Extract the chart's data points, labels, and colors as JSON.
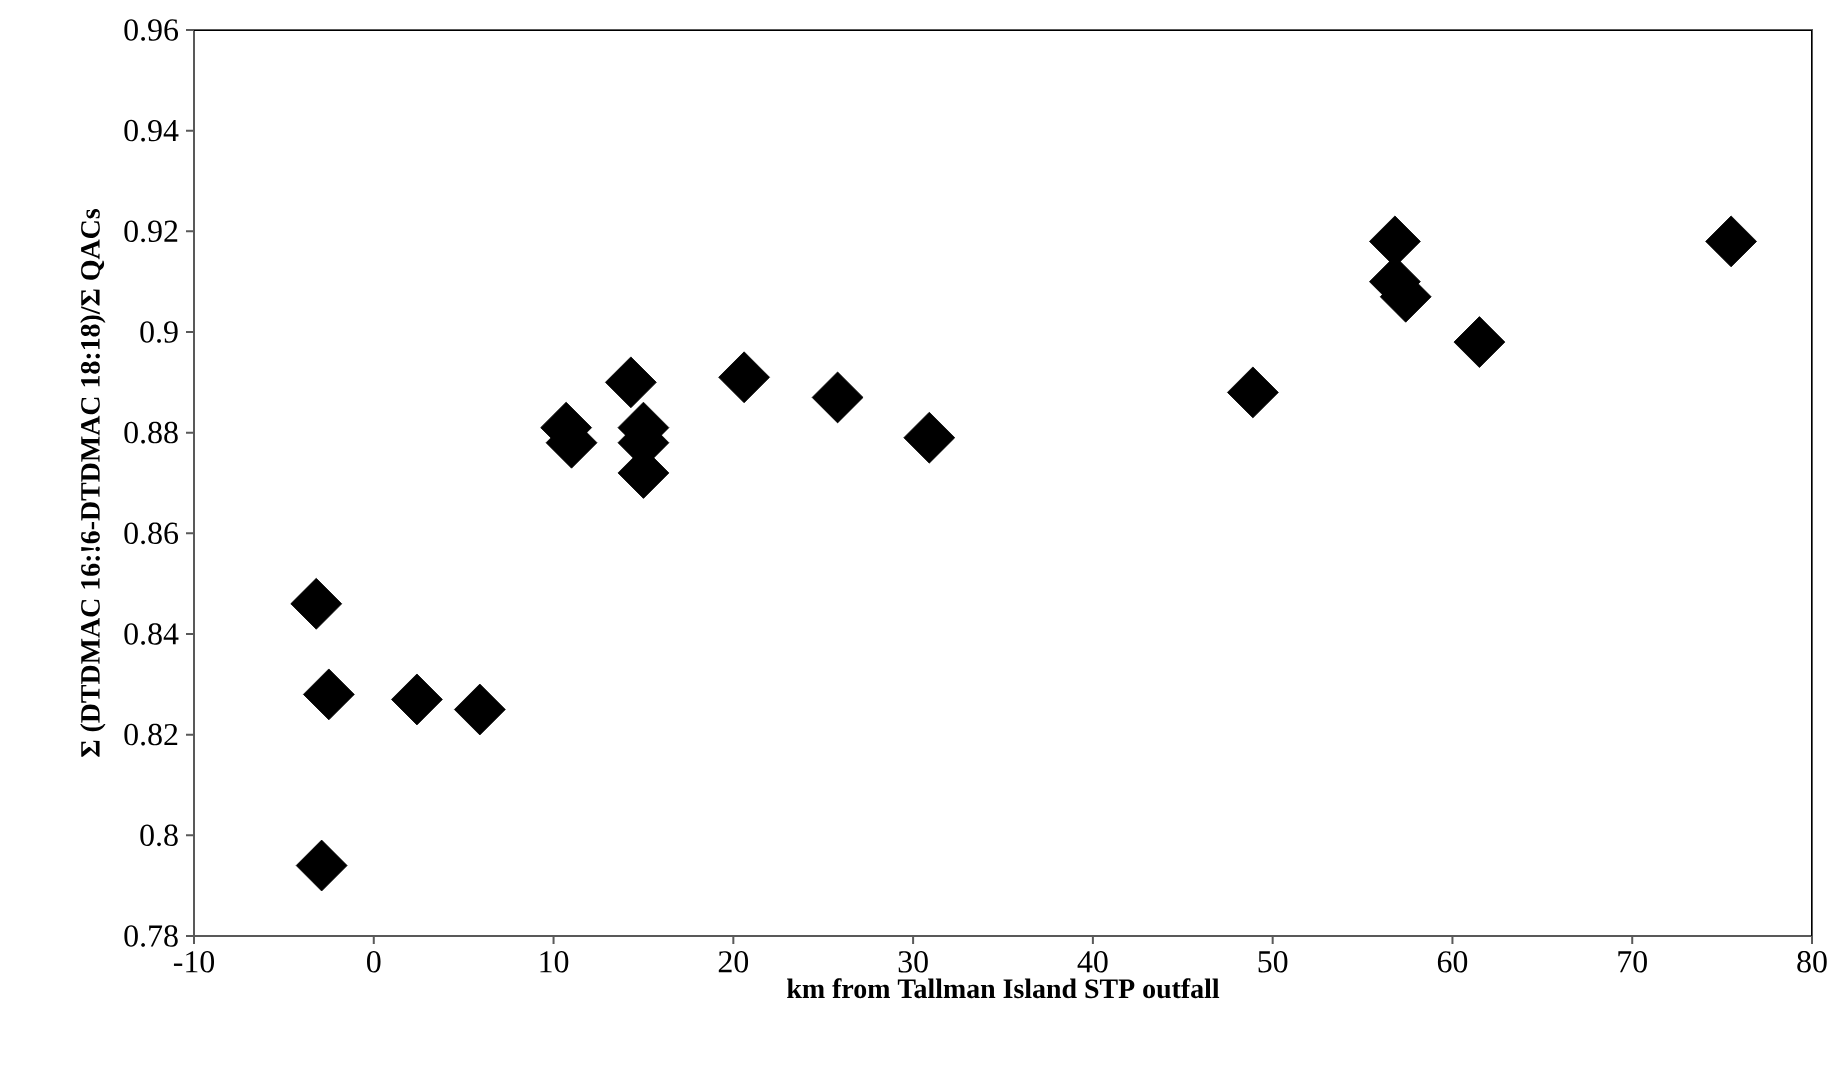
{
  "chart_data": {
    "type": "scatter",
    "xlabel": "km from Tallman Island STP outfall",
    "ylabel": "Σ (DTDMAC 16:!6-DTDMAC 18:18)/Σ QACs",
    "xlim": [
      -10,
      80
    ],
    "xticks": [
      -10,
      0,
      10,
      20,
      30,
      40,
      50,
      60,
      70,
      80
    ],
    "ylim": [
      0.78,
      0.96
    ],
    "yticks": [
      0.78,
      0.8,
      0.82,
      0.84,
      0.86,
      0.88,
      0.9,
      0.92,
      0.94,
      0.96
    ],
    "marker": "diamond",
    "grid": false,
    "series": [
      {
        "color": "#000000",
        "x": [
          -3.2,
          -2.5,
          -2.9,
          2.4,
          5.9,
          10.7,
          11.0,
          14.3,
          15.0,
          15.0,
          15.0,
          20.6,
          25.8,
          30.9,
          48.9,
          56.8,
          56.8,
          57.4,
          61.5,
          75.5
        ],
        "values": [
          0.846,
          0.828,
          0.794,
          0.827,
          0.825,
          0.881,
          0.878,
          0.89,
          0.881,
          0.878,
          0.872,
          0.891,
          0.887,
          0.879,
          0.888,
          0.918,
          0.91,
          0.907,
          0.898,
          0.918
        ]
      }
    ]
  }
}
